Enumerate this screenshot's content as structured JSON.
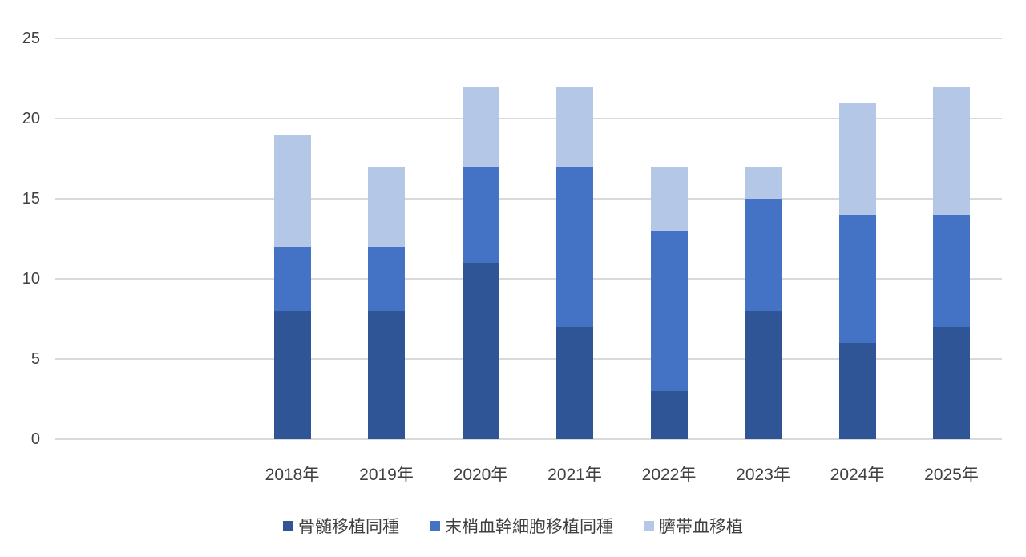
{
  "chart_data": {
    "type": "bar",
    "stacked": true,
    "title": "",
    "xlabel": "",
    "ylabel": "",
    "categories": [
      "2018年",
      "2019年",
      "2020年",
      "2021年",
      "2022年",
      "2023年",
      "2024年",
      "2025年"
    ],
    "series": [
      {
        "name": "骨髄移植同種",
        "color": "#2F5597",
        "values": [
          8,
          8,
          11,
          7,
          3,
          8,
          6,
          7
        ]
      },
      {
        "name": "末梢血幹細胞移植同種",
        "color": "#4472C4",
        "values": [
          4,
          4,
          6,
          10,
          10,
          7,
          8,
          7
        ]
      },
      {
        "name": "臍帯血移植",
        "color": "#B4C7E7",
        "values": [
          7,
          5,
          5,
          5,
          4,
          2,
          7,
          8
        ]
      }
    ],
    "totals": [
      19,
      17,
      22,
      22,
      17,
      17,
      21,
      22
    ],
    "ylim": [
      0,
      25
    ],
    "yticks": [
      0,
      5,
      10,
      15,
      20,
      25
    ],
    "grid": true,
    "legend_position": "bottom",
    "leading_empty_slots": 2
  },
  "colors": {
    "gridline": "#D9D9D9",
    "axis_label": "#404040",
    "background": "#FFFFFF"
  }
}
